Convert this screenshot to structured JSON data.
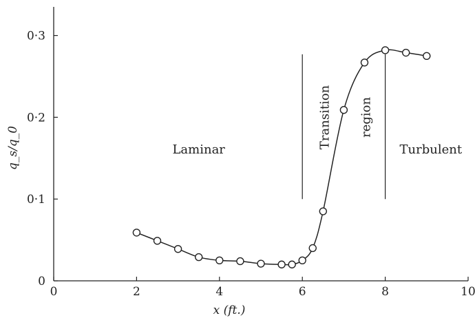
{
  "chart_data": {
    "type": "line",
    "title": "",
    "xlabel": "x (ft.)",
    "ylabel": "q_s/q_0",
    "xlim": [
      0,
      10
    ],
    "ylim": [
      0,
      0.335
    ],
    "x_ticks": [
      0,
      2,
      4,
      6,
      8,
      10
    ],
    "x_tick_labels": [
      "0",
      "2",
      "4",
      "6",
      "8",
      "10"
    ],
    "y_ticks": [
      0,
      0.1,
      0.2,
      0.3
    ],
    "y_tick_labels": [
      "0",
      "0·1",
      "0·2",
      "0·3"
    ],
    "grid": false,
    "markers": "open-circle",
    "series": [
      {
        "x": [
          2,
          2.5,
          3,
          3.5,
          4,
          4.5,
          5,
          5.5,
          5.75,
          6,
          6.25,
          6.5,
          7,
          7.5,
          8,
          8.5,
          9
        ],
        "y": [
          0.059,
          0.049,
          0.039,
          0.029,
          0.025,
          0.024,
          0.021,
          0.02,
          0.02,
          0.025,
          0.04,
          0.085,
          0.209,
          0.267,
          0.282,
          0.279,
          0.275
        ]
      }
    ],
    "vlines": [
      {
        "x": 6,
        "y_range": [
          0.1,
          0.277
        ]
      },
      {
        "x": 8,
        "y_range": [
          0.1,
          0.277
        ]
      }
    ],
    "annotations": [
      {
        "text": "Laminar",
        "x": 3.5,
        "y": 0.16,
        "rotation": 0
      },
      {
        "text": "Transition",
        "x": 6.55,
        "y": 0.2,
        "rotation": -90
      },
      {
        "text": "region",
        "x": 7.55,
        "y": 0.2,
        "rotation": -90
      },
      {
        "text": "Turbulent",
        "x": 9.1,
        "y": 0.16,
        "rotation": 0
      }
    ]
  }
}
